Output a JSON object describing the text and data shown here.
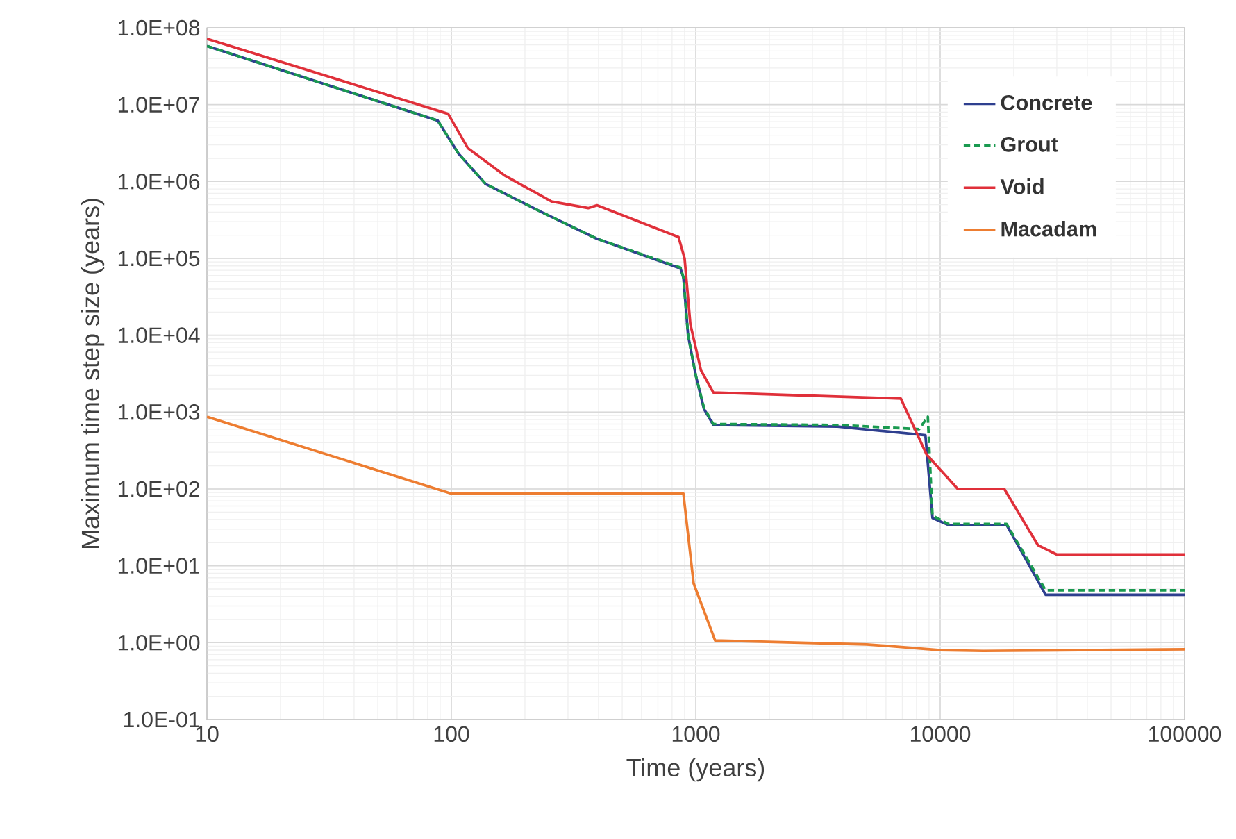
{
  "chart_data": {
    "type": "line",
    "xlabel": "Time (years)",
    "ylabel": "Maximum time step size (years)",
    "log": "xy",
    "grid": true,
    "legend": "top right",
    "xlim": [
      10,
      100000
    ],
    "xticks": [
      10,
      100,
      1000,
      10000,
      100000
    ],
    "ylim": [
      0.1,
      100000000
    ],
    "yticks": [
      {
        "value": 0.1,
        "label": "1.0E-01"
      },
      {
        "value": 1,
        "label": "1.0E+00"
      },
      {
        "value": 10,
        "label": "1.0E+01"
      },
      {
        "value": 100,
        "label": "1.0E+02"
      },
      {
        "value": 1000,
        "label": "1.0E+03"
      },
      {
        "value": 10000,
        "label": "1.0E+04"
      },
      {
        "value": 100000,
        "label": "1.0E+05"
      },
      {
        "value": 1000000,
        "label": "1.0E+06"
      },
      {
        "value": 10000000,
        "label": "1.0E+07"
      },
      {
        "value": 100000000,
        "label": "1.0E+08"
      }
    ],
    "series": [
      {
        "name": "Concrete",
        "color": "#2e3f8f",
        "line_style": "solid",
        "x": [
          10,
          88,
          107,
          138,
          234,
          394,
          866,
          890,
          930,
          1000,
          1080,
          1180,
          3800,
          8700,
          9300,
          10800,
          18700,
          27000,
          100000
        ],
        "values": [
          58000000,
          6200000,
          2300000,
          930000,
          400000,
          180000,
          74000,
          56000,
          10000,
          3000,
          1100,
          680,
          650,
          500,
          42,
          34,
          34,
          4.2,
          4.2
        ]
      },
      {
        "name": "Grout",
        "color": "#1a9a50",
        "line_style": "dashed",
        "x": [
          10,
          88,
          107,
          138,
          234,
          394,
          866,
          890,
          930,
          1000,
          1080,
          1180,
          3800,
          8200,
          8900,
          9300,
          10800,
          18700,
          27000,
          100000
        ],
        "values": [
          58000000,
          6200000,
          2300000,
          930000,
          400000,
          180000,
          76000,
          57000,
          10000,
          3000,
          1150,
          700,
          680,
          600,
          870,
          45,
          35,
          35,
          4.8,
          4.8
        ]
      },
      {
        "name": "Void",
        "color": "#e0303a",
        "line_style": "solid",
        "x": [
          10,
          97,
          117,
          165,
          257,
          363,
          394,
          850,
          900,
          950,
          1050,
          1180,
          6900,
          8800,
          11800,
          18300,
          25100,
          30000,
          100000
        ],
        "values": [
          72000000,
          7600000,
          2700000,
          1200000,
          550000,
          450000,
          490000,
          190000,
          100000,
          14000,
          3500,
          1800,
          1500,
          280,
          100,
          100,
          18.6,
          14,
          14
        ]
      },
      {
        "name": "Macadam",
        "color": "#ed7d31",
        "line_style": "solid",
        "x": [
          10,
          100,
          890,
          980,
          1200,
          5000,
          10000,
          15000,
          100000
        ],
        "values": [
          870,
          87,
          87,
          5.9,
          1.07,
          0.95,
          0.8,
          0.78,
          0.82
        ]
      }
    ]
  }
}
